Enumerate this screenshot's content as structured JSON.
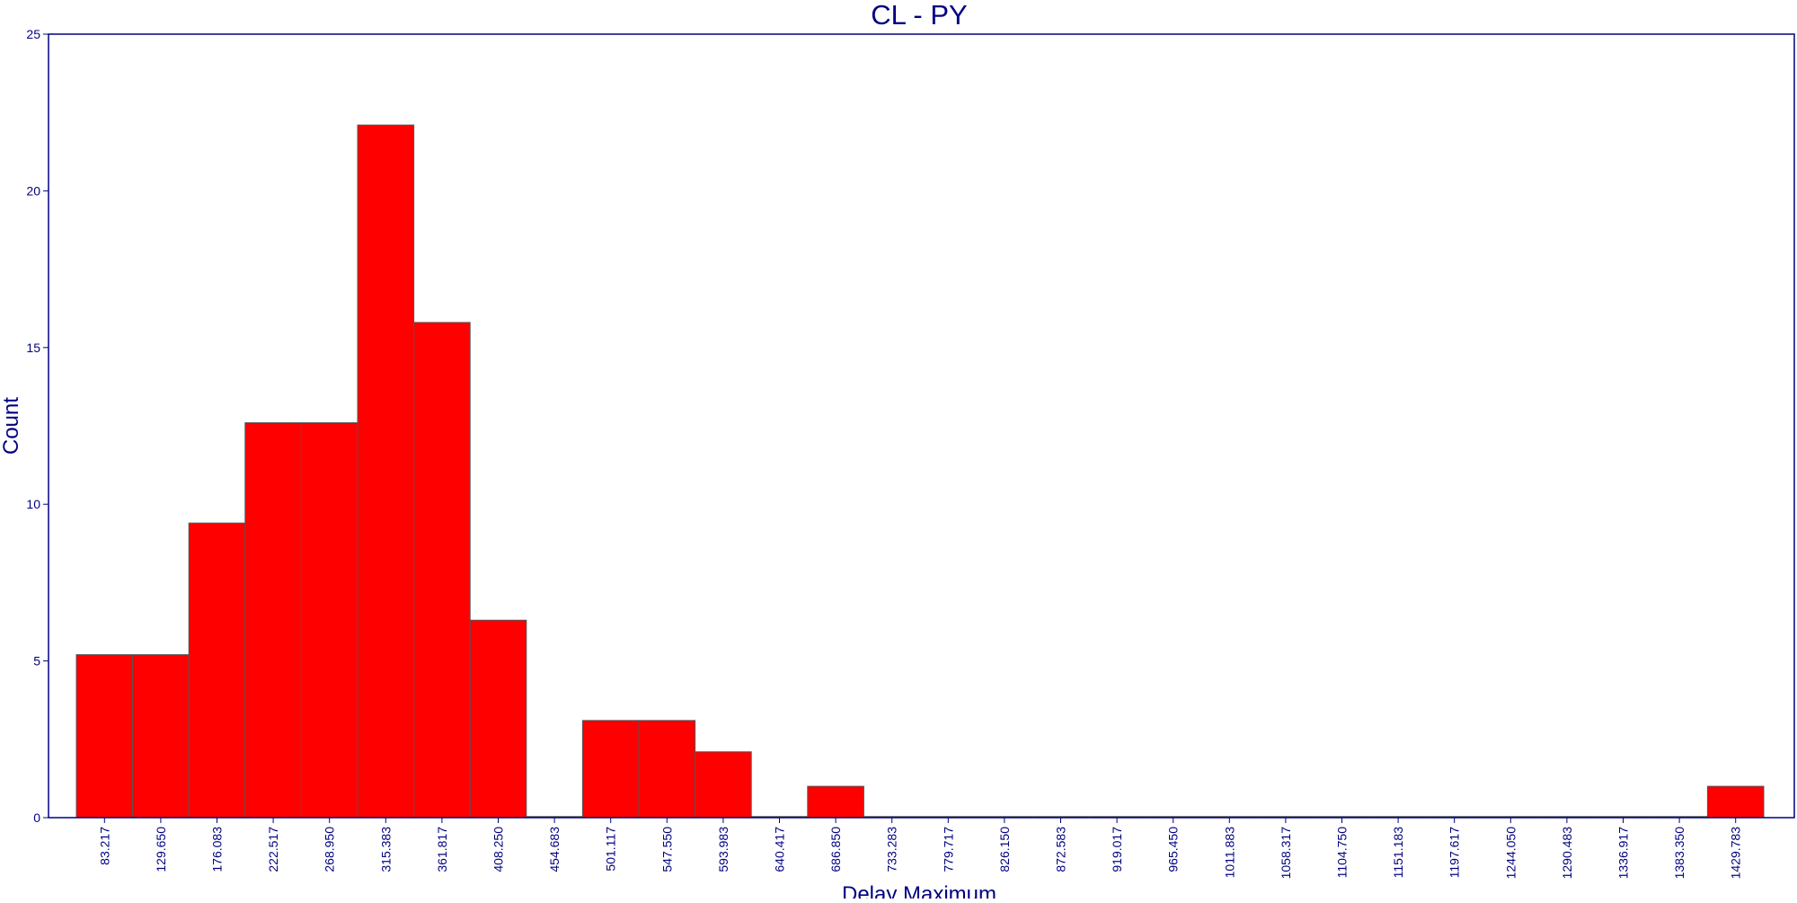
{
  "chart_data": {
    "type": "bar",
    "title": "CL - PY",
    "xlabel": "Delay Maximum",
    "ylabel": "Count",
    "ylim": [
      0,
      25
    ],
    "yticks": [
      "0",
      "5",
      "10",
      "15",
      "20",
      "25"
    ],
    "grid": false,
    "legend": "none",
    "categories": [
      "83.217",
      "129.650",
      "176.083",
      "222.517",
      "268.950",
      "315.383",
      "361.817",
      "408.250",
      "454.683",
      "501.117",
      "547.550",
      "593.983",
      "640.417",
      "686.850",
      "733.283",
      "779.717",
      "826.150",
      "872.583",
      "919.017",
      "965.450",
      "1011.883",
      "1058.317",
      "1104.750",
      "1151.183",
      "1197.617",
      "1244.050",
      "1290.483",
      "1336.917",
      "1383.350",
      "1429.783"
    ],
    "values": [
      5.2,
      5.2,
      9.4,
      12.6,
      12.6,
      22.1,
      15.8,
      6.3,
      0,
      3.1,
      3.1,
      2.1,
      0,
      1.0,
      0,
      0,
      0,
      0,
      0,
      0,
      0,
      0,
      0,
      0,
      0,
      0,
      0,
      0,
      0,
      1.0
    ],
    "colors": {
      "bar_fill": "#ff0000",
      "bar_stroke": "#555555",
      "text": "#000080",
      "frame": "#000080"
    }
  }
}
